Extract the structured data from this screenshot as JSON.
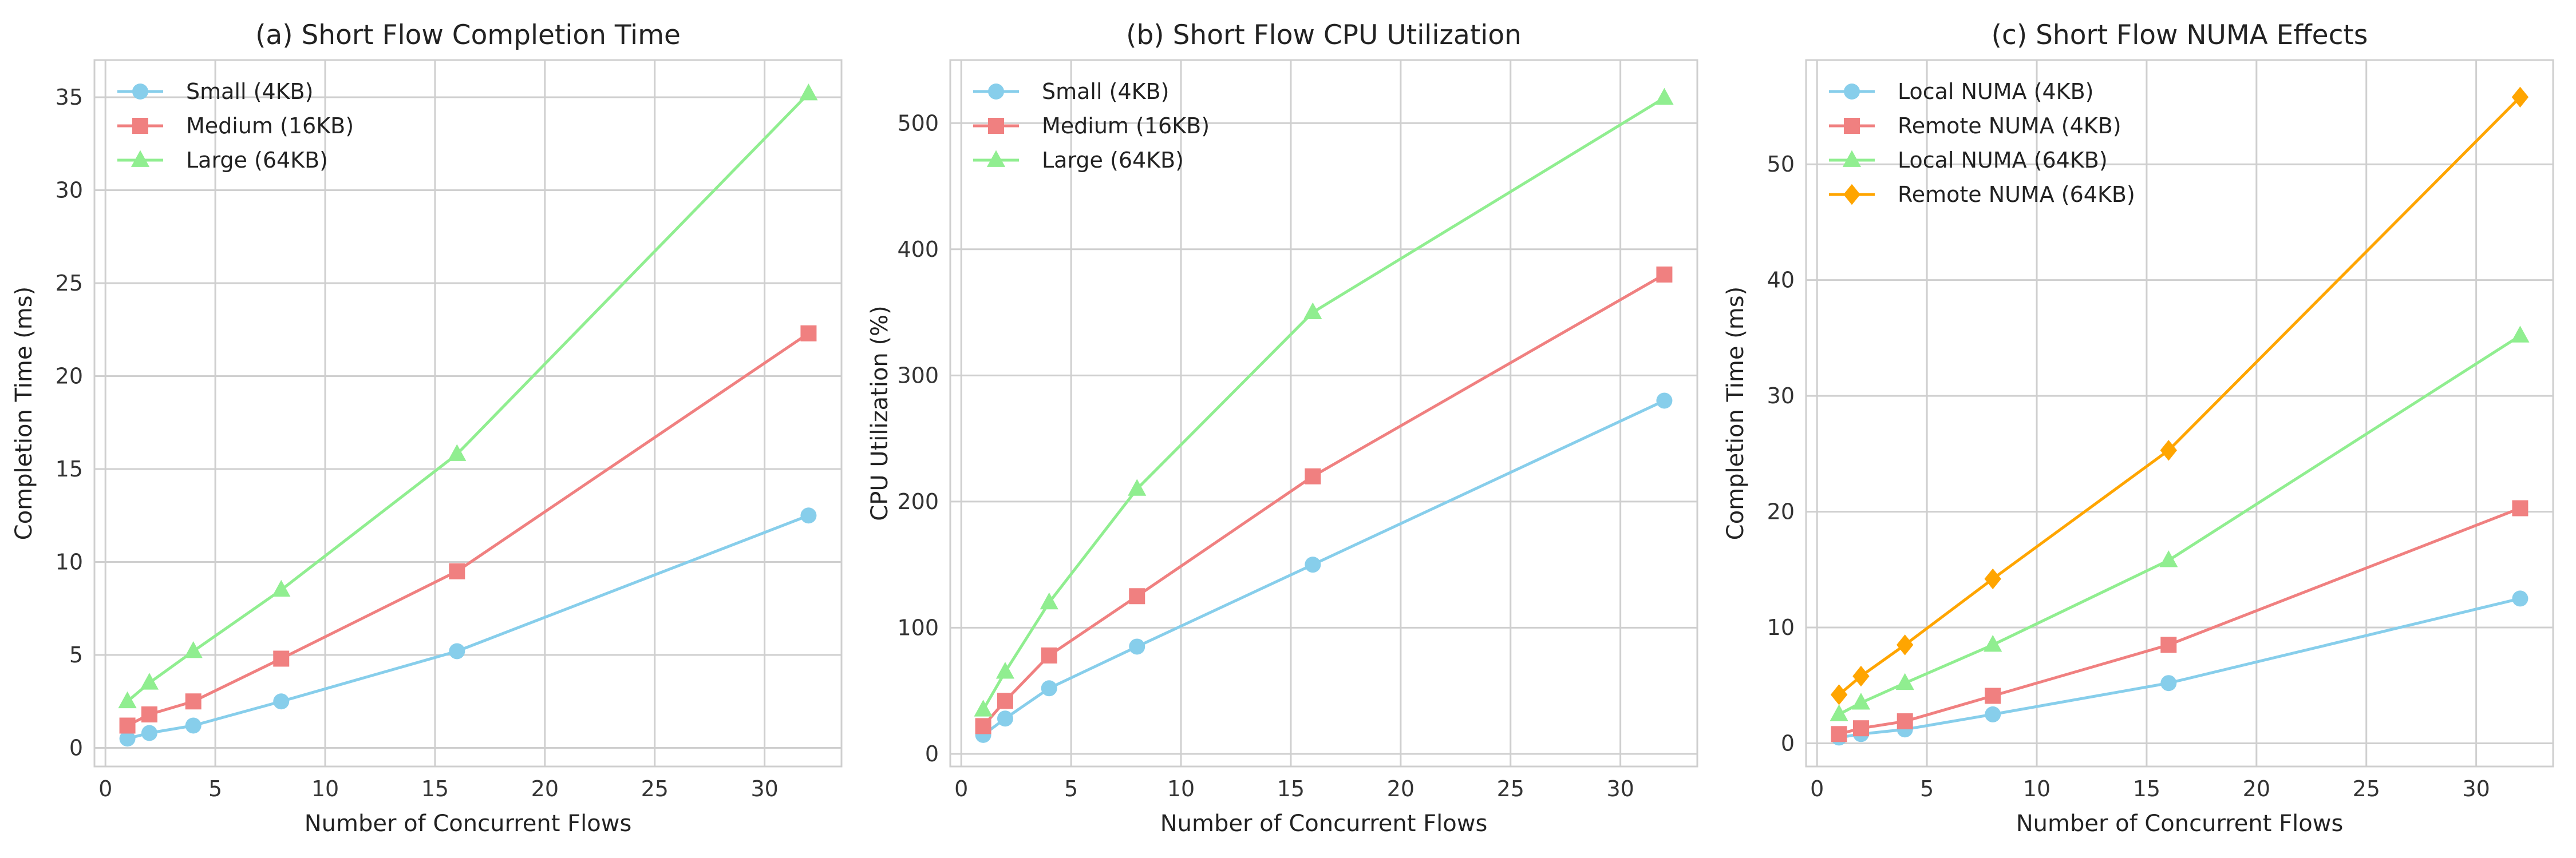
{
  "chart_data": [
    {
      "type": "line",
      "title": "(a) Short Flow Completion Time",
      "xlabel": "Number of Concurrent Flows",
      "ylabel": "Completion Time (ms)",
      "xlim": [
        -0.5,
        33.5
      ],
      "ylim": [
        -1,
        37
      ],
      "xticks": [
        0,
        5,
        10,
        15,
        20,
        25,
        30
      ],
      "yticks": [
        0,
        5,
        10,
        15,
        20,
        25,
        30,
        35
      ],
      "grid": true,
      "legend_position": "top-left",
      "x": [
        1,
        2,
        4,
        8,
        16,
        32
      ],
      "series": [
        {
          "name": "Small (4KB)",
          "color": "#87ceeb",
          "marker": "circle",
          "values": [
            0.5,
            0.8,
            1.2,
            2.5,
            5.2,
            12.5
          ]
        },
        {
          "name": "Medium (16KB)",
          "color": "#f08080",
          "marker": "square",
          "values": [
            1.2,
            1.8,
            2.5,
            4.8,
            9.5,
            22.3
          ]
        },
        {
          "name": "Large (64KB)",
          "color": "#90ee90",
          "marker": "triangle",
          "values": [
            2.5,
            3.5,
            5.2,
            8.5,
            15.8,
            35.2
          ]
        }
      ]
    },
    {
      "type": "line",
      "title": "(b) Short Flow CPU Utilization",
      "xlabel": "Number of Concurrent Flows",
      "ylabel": "CPU Utilization (%)",
      "xlim": [
        -0.5,
        33.5
      ],
      "ylim": [
        -10,
        550
      ],
      "xticks": [
        0,
        5,
        10,
        15,
        20,
        25,
        30
      ],
      "yticks": [
        0,
        100,
        200,
        300,
        400,
        500
      ],
      "grid": true,
      "legend_position": "top-left",
      "x": [
        1,
        2,
        4,
        8,
        16,
        32
      ],
      "series": [
        {
          "name": "Small (4KB)",
          "color": "#87ceeb",
          "marker": "circle",
          "values": [
            15,
            28,
            52,
            85,
            150,
            280
          ]
        },
        {
          "name": "Medium (16KB)",
          "color": "#f08080",
          "marker": "square",
          "values": [
            22,
            42,
            78,
            125,
            220,
            380
          ]
        },
        {
          "name": "Large (64KB)",
          "color": "#90ee90",
          "marker": "triangle",
          "values": [
            35,
            65,
            120,
            210,
            350,
            520
          ]
        }
      ]
    },
    {
      "type": "line",
      "title": "(c) Short Flow NUMA Effects",
      "xlabel": "Number of Concurrent Flows",
      "ylabel": "Completion Time (ms)",
      "xlim": [
        -0.5,
        33.5
      ],
      "ylim": [
        -2,
        59
      ],
      "xticks": [
        0,
        5,
        10,
        15,
        20,
        25,
        30
      ],
      "yticks": [
        0,
        10,
        20,
        30,
        40,
        50
      ],
      "grid": true,
      "legend_position": "top-left",
      "x": [
        1,
        2,
        4,
        8,
        16,
        32
      ],
      "series": [
        {
          "name": "Local NUMA (4KB)",
          "color": "#87ceeb",
          "marker": "circle",
          "values": [
            0.5,
            0.8,
            1.2,
            2.5,
            5.2,
            12.5
          ]
        },
        {
          "name": "Remote NUMA (4KB)",
          "color": "#f08080",
          "marker": "square",
          "values": [
            0.8,
            1.3,
            1.9,
            4.1,
            8.5,
            20.3
          ]
        },
        {
          "name": "Local NUMA (64KB)",
          "color": "#90ee90",
          "marker": "triangle",
          "values": [
            2.5,
            3.5,
            5.2,
            8.5,
            15.8,
            35.2
          ]
        },
        {
          "name": "Remote NUMA (64KB)",
          "color": "#ffa500",
          "marker": "diamond",
          "values": [
            4.2,
            5.8,
            8.5,
            14.2,
            25.3,
            55.8
          ]
        }
      ]
    }
  ]
}
